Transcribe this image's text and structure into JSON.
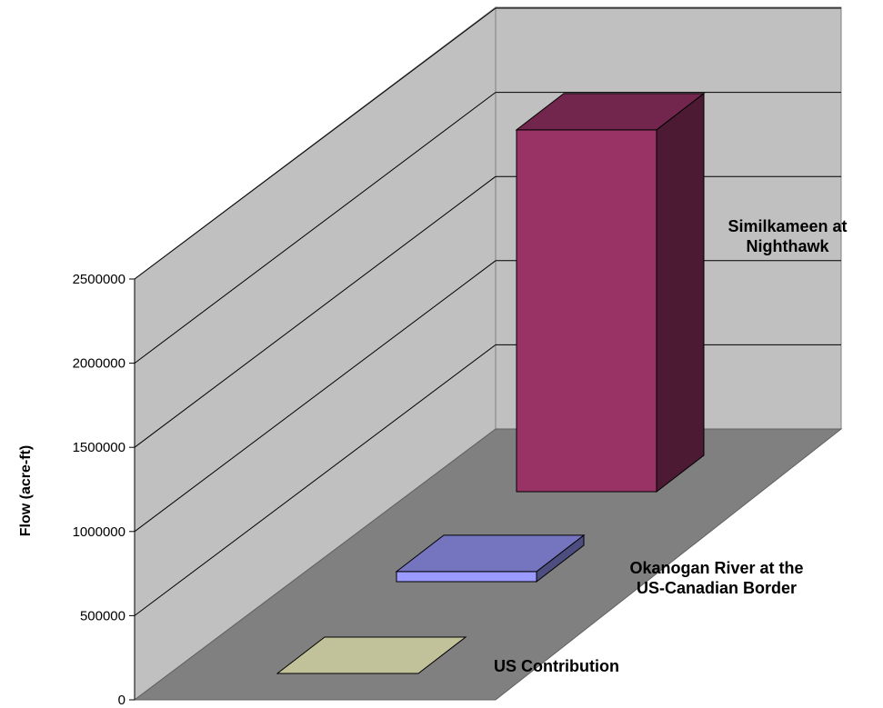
{
  "chart_data": {
    "type": "bar",
    "projection": "3d",
    "ylabel": "Flow (acre-ft)",
    "ylim": [
      0,
      2500000
    ],
    "yticks": [
      0,
      500000,
      1000000,
      1500000,
      2000000,
      2500000
    ],
    "grid": true,
    "categories": [
      "US Contribution",
      "Okanogan River at the US-Canadian Border",
      "Similkameen at Nighthawk"
    ],
    "category_label_lines": [
      [
        "US Contribution"
      ],
      [
        "Okanogan River at the",
        "US-Canadian Border"
      ],
      [
        "Similkameen at",
        "Nighthawk"
      ]
    ],
    "values": [
      0,
      60000,
      2150000
    ],
    "colors": [
      "#c2c29a",
      "#9a9aff",
      "#993366"
    ]
  }
}
